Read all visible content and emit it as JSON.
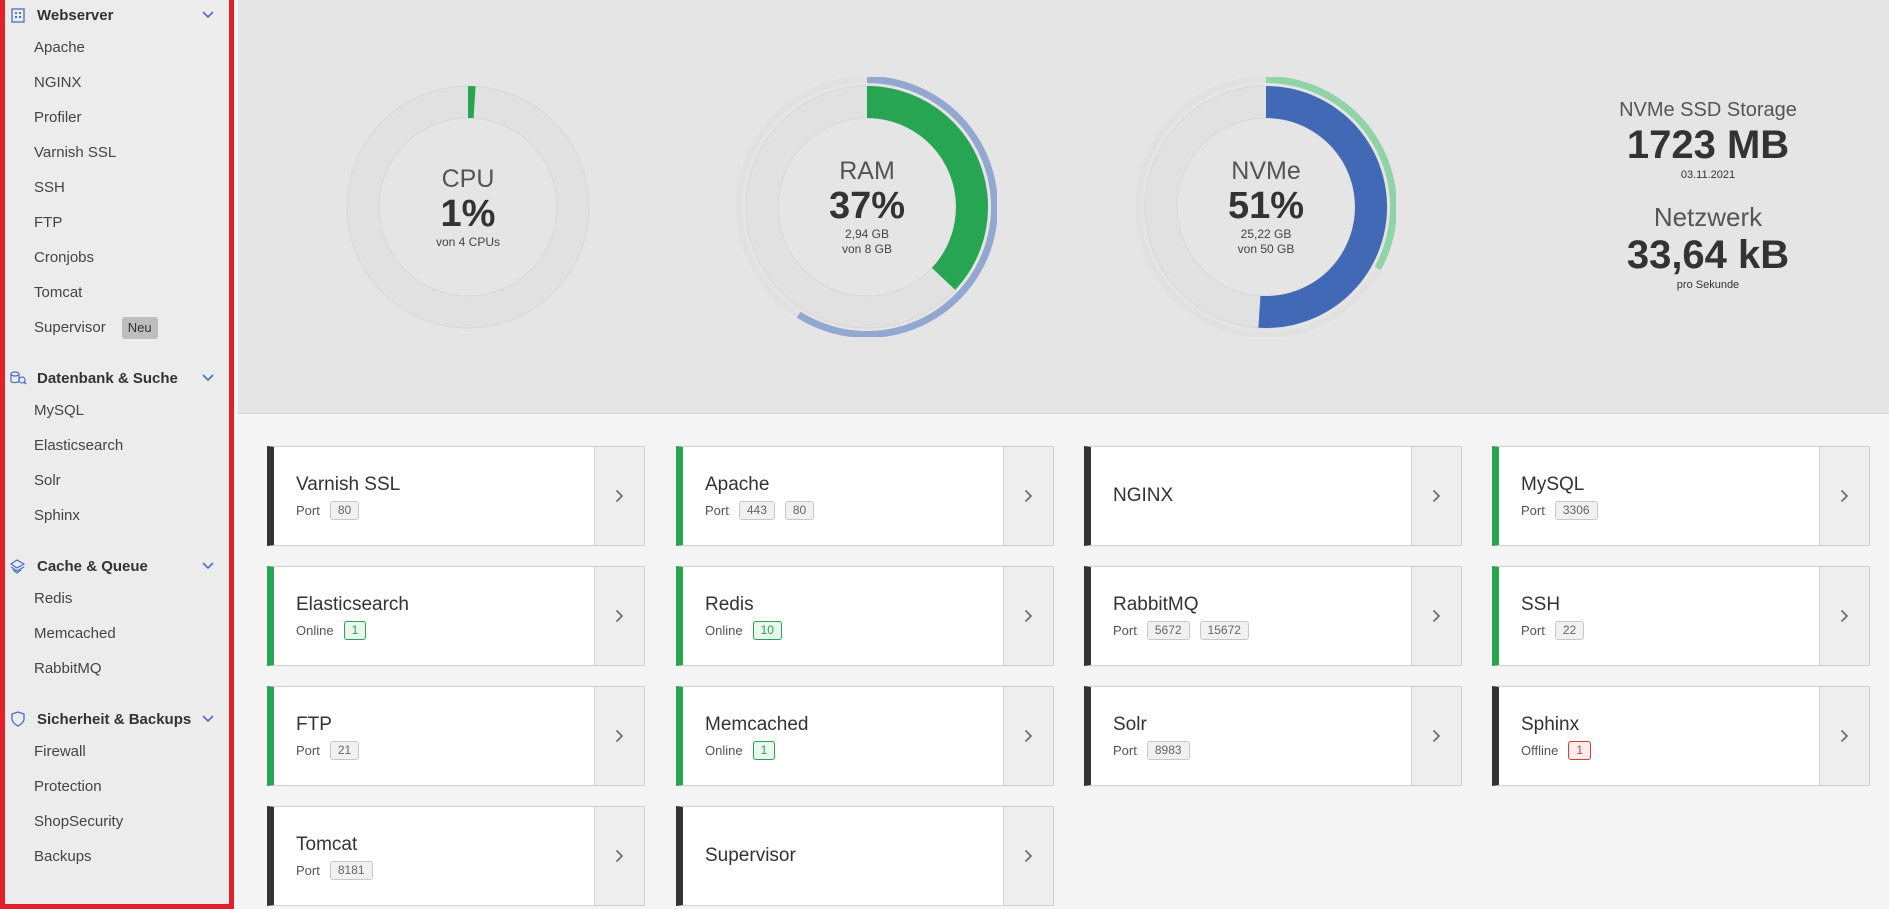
{
  "sidebar": {
    "sections": [
      {
        "label": "Webserver",
        "items": [
          "Apache",
          "NGINX",
          "Profiler",
          "Varnish SSL",
          "SSH",
          "FTP",
          "Cronjobs",
          "Tomcat",
          "Supervisor"
        ],
        "badge": "Neu"
      },
      {
        "label": "Datenbank & Suche",
        "items": [
          "MySQL",
          "Elasticsearch",
          "Solr",
          "Sphinx"
        ]
      },
      {
        "label": "Cache & Queue",
        "items": [
          "Redis",
          "Memcached",
          "RabbitMQ"
        ]
      },
      {
        "label": "Sicherheit & Backups",
        "items": [
          "Firewall",
          "Protection",
          "ShopSecurity",
          "Backups"
        ]
      }
    ]
  },
  "gauges": {
    "cpu": {
      "name": "CPU",
      "value": "1%",
      "sub1": "von 4 CPUs",
      "fraction": 0.01
    },
    "ram": {
      "name": "RAM",
      "value": "37%",
      "sub1": "2,94 GB",
      "sub2": "von 8 GB",
      "fraction": 0.37,
      "outer_fraction": 0.59
    },
    "nvme": {
      "name": "NVMe",
      "value": "51%",
      "sub1": "25,22 GB",
      "sub2": "von 50 GB",
      "fraction": 0.51,
      "outer_fraction": 0.33
    }
  },
  "storage": {
    "title": "NVMe SSD Storage",
    "value": "1723 MB",
    "date": "03.11.2021",
    "net_title": "Netzwerk",
    "net_value": "33,64 kB",
    "net_sub": "pro Sekunde"
  },
  "cards": [
    {
      "title": "Varnish SSL",
      "status": "dark",
      "label": "Port",
      "tags": [
        {
          "t": "80",
          "c": "grey"
        }
      ]
    },
    {
      "title": "Apache",
      "status": "ok",
      "label": "Port",
      "tags": [
        {
          "t": "443",
          "c": "grey"
        },
        {
          "t": "80",
          "c": "grey"
        }
      ]
    },
    {
      "title": "NGINX",
      "status": "dark",
      "label": "",
      "tags": []
    },
    {
      "title": "MySQL",
      "status": "ok",
      "label": "Port",
      "tags": [
        {
          "t": "3306",
          "c": "grey"
        }
      ]
    },
    {
      "title": "Elasticsearch",
      "status": "ok",
      "label": "Online",
      "tags": [
        {
          "t": "1",
          "c": "green"
        }
      ]
    },
    {
      "title": "Redis",
      "status": "ok",
      "label": "Online",
      "tags": [
        {
          "t": "10",
          "c": "green"
        }
      ]
    },
    {
      "title": "RabbitMQ",
      "status": "dark",
      "label": "Port",
      "tags": [
        {
          "t": "5672",
          "c": "grey"
        },
        {
          "t": "15672",
          "c": "grey"
        }
      ]
    },
    {
      "title": "SSH",
      "status": "ok",
      "label": "Port",
      "tags": [
        {
          "t": "22",
          "c": "grey"
        }
      ]
    },
    {
      "title": "FTP",
      "status": "ok",
      "label": "Port",
      "tags": [
        {
          "t": "21",
          "c": "grey"
        }
      ]
    },
    {
      "title": "Memcached",
      "status": "ok",
      "label": "Online",
      "tags": [
        {
          "t": "1",
          "c": "green"
        }
      ]
    },
    {
      "title": "Solr",
      "status": "dark",
      "label": "Port",
      "tags": [
        {
          "t": "8983",
          "c": "grey"
        }
      ]
    },
    {
      "title": "Sphinx",
      "status": "dark",
      "label": "Offline",
      "tags": [
        {
          "t": "1",
          "c": "red"
        }
      ]
    },
    {
      "title": "Tomcat",
      "status": "dark",
      "label": "Port",
      "tags": [
        {
          "t": "8181",
          "c": "grey"
        }
      ]
    },
    {
      "title": "Supervisor",
      "status": "dark",
      "label": "",
      "tags": []
    }
  ],
  "colors": {
    "green": "#27a552",
    "blue": "#4169b5",
    "light_blue": "#93a8d1",
    "light_green": "#8fd3a6",
    "red": "#e3202a"
  },
  "icons": [
    "building-icon",
    "database-icon",
    "layers-icon",
    "shield-icon",
    "chevron-down-icon",
    "chevron-right-icon"
  ]
}
